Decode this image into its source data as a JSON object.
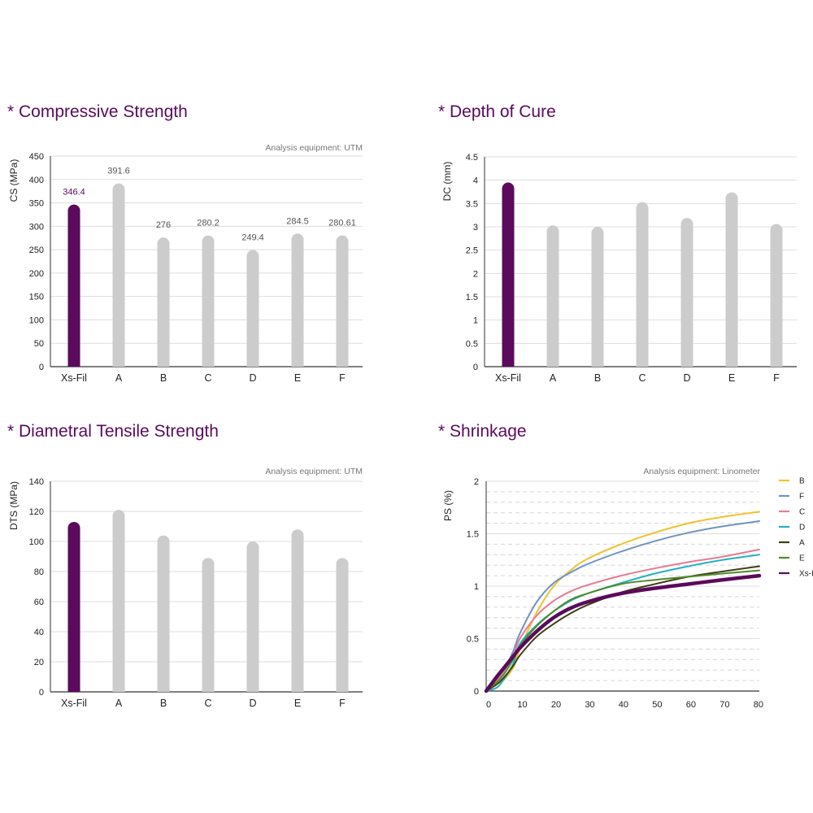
{
  "colors": {
    "title": "#5a0a5e",
    "highlight": "#5b0a5c",
    "bar": "#cccccc",
    "grid": "#dddddd",
    "axis": "#555555",
    "note": "#777777",
    "label": "#222222",
    "value_label": "#555555"
  },
  "chart_data": [
    {
      "id": "cs",
      "type": "bar",
      "title": "* Compressive Strength",
      "note": "Analysis equipment: UTM",
      "xlabel": "",
      "ylabel": "CS (MPa)",
      "ylim": [
        0,
        450
      ],
      "yticks": [
        "0",
        "50",
        "100",
        "150",
        "200",
        "250",
        "300",
        "350",
        "400",
        "450"
      ],
      "grid": true,
      "categories": [
        "Xs-Fil",
        "A",
        "B",
        "C",
        "D",
        "E",
        "F"
      ],
      "values": [
        346.4,
        391.6,
        276,
        280.2,
        249.4,
        284.5,
        280.61
      ],
      "value_labels": [
        "346.4",
        "391.6",
        "276",
        "280.2",
        "249.4",
        "284.5",
        "280.61"
      ],
      "highlight": "Xs-Fil"
    },
    {
      "id": "dc",
      "type": "bar",
      "title": "* Depth of Cure",
      "xlabel": "",
      "ylabel": "DC (mm)",
      "ylim": [
        0,
        4.5
      ],
      "yticks": [
        "0",
        "0.5",
        "1",
        "1.5",
        "2",
        "2.5",
        "3",
        "3.5",
        "4",
        "4.5"
      ],
      "grid": true,
      "categories": [
        "Xs-Fil",
        "A",
        "B",
        "C",
        "D",
        "E",
        "F"
      ],
      "values": [
        3.95,
        3.03,
        3.0,
        3.53,
        3.19,
        3.74,
        3.06
      ],
      "highlight": "Xs-Fil"
    },
    {
      "id": "dts",
      "type": "bar",
      "title": "* Diametral Tensile Strength",
      "note": "Analysis equipment: UTM",
      "xlabel": "",
      "ylabel": "DTS (MPa)",
      "ylim": [
        0,
        140
      ],
      "yticks": [
        "0",
        "20",
        "40",
        "60",
        "80",
        "100",
        "120",
        "140"
      ],
      "grid": true,
      "categories": [
        "Xs-Fil",
        "A",
        "B",
        "C",
        "D",
        "E",
        "F"
      ],
      "values": [
        113,
        121,
        104,
        89,
        100,
        108,
        89
      ],
      "highlight": "Xs-Fil"
    },
    {
      "id": "ps",
      "type": "line",
      "title": "* Shrinkage",
      "note": "Analysis equipment: Linometer",
      "xlabel": "",
      "ylabel": "PS (%)",
      "xlim": [
        0,
        81
      ],
      "ylim": [
        0,
        2
      ],
      "xticks": [
        "0",
        "10",
        "20",
        "30",
        "40",
        "50",
        "60",
        "70",
        "80"
      ],
      "yticks": [
        "0",
        "0.5",
        "1",
        "1.5",
        "2"
      ],
      "grid": true,
      "legend": "right",
      "x": [
        0,
        3,
        5,
        8,
        10,
        15,
        20,
        25,
        30,
        40,
        50,
        60,
        70,
        81
      ],
      "series": [
        {
          "name": "B",
          "color": "#f2c12e",
          "width": 2,
          "values": [
            0,
            0.06,
            0.1,
            0.22,
            0.4,
            0.75,
            1.0,
            1.15,
            1.26,
            1.4,
            1.51,
            1.6,
            1.66,
            1.71
          ]
        },
        {
          "name": "F",
          "color": "#6f93c2",
          "width": 2,
          "values": [
            0,
            0.1,
            0.18,
            0.38,
            0.55,
            0.85,
            1.03,
            1.13,
            1.21,
            1.33,
            1.43,
            1.51,
            1.57,
            1.62
          ]
        },
        {
          "name": "C",
          "color": "#e87a92",
          "width": 2,
          "values": [
            0,
            0.1,
            0.18,
            0.33,
            0.5,
            0.72,
            0.86,
            0.95,
            1.01,
            1.1,
            1.17,
            1.23,
            1.28,
            1.35
          ]
        },
        {
          "name": "D",
          "color": "#27b0c4",
          "width": 2,
          "values": [
            0,
            0.03,
            0.1,
            0.26,
            0.45,
            0.63,
            0.76,
            0.86,
            0.93,
            1.03,
            1.12,
            1.19,
            1.25,
            1.3
          ]
        },
        {
          "name": "A",
          "color": "#3d4010",
          "width": 2,
          "values": [
            0,
            0.06,
            0.12,
            0.24,
            0.34,
            0.52,
            0.64,
            0.74,
            0.82,
            0.94,
            1.02,
            1.09,
            1.14,
            1.19
          ]
        },
        {
          "name": "E",
          "color": "#4e8a2a",
          "width": 2,
          "values": [
            0,
            0.08,
            0.15,
            0.3,
            0.43,
            0.62,
            0.76,
            0.87,
            0.93,
            1.02,
            1.06,
            1.09,
            1.12,
            1.15
          ]
        },
        {
          "name": "Xs-Fil",
          "legend_label": "Xs-I",
          "color": "#5b0a5c",
          "width": 4.5,
          "values": [
            0,
            0.13,
            0.21,
            0.33,
            0.41,
            0.57,
            0.7,
            0.79,
            0.85,
            0.93,
            0.98,
            1.02,
            1.06,
            1.1
          ]
        }
      ]
    }
  ]
}
